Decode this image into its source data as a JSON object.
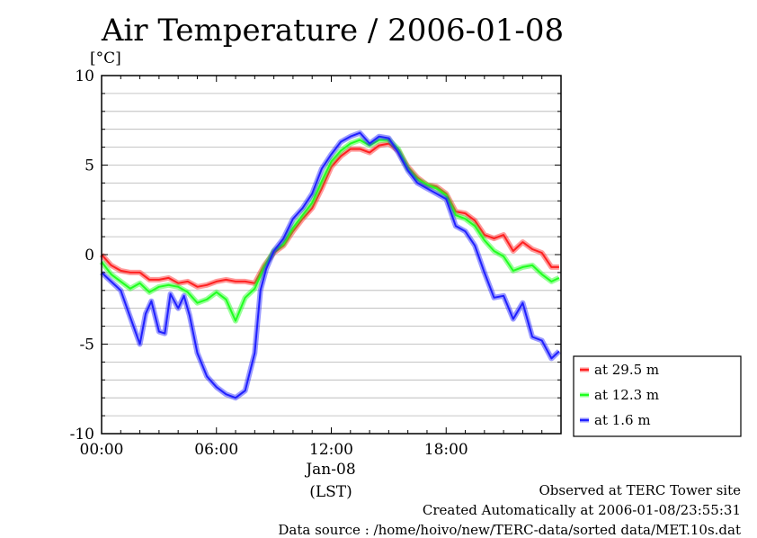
{
  "chart_data": {
    "type": "line",
    "title": "Air Temperature / 2006-01-08",
    "yunit": "[°C]",
    "xlabel": "(LST)",
    "date_label": "Jan-08",
    "x_range_hours": [
      0,
      24
    ],
    "ylim": [
      -10,
      10
    ],
    "y_major_ticks": [
      10,
      5,
      0,
      -5,
      -10
    ],
    "y_minor_step": 1,
    "x_ticks": [
      {
        "hour": 0,
        "label": "00:00"
      },
      {
        "hour": 6,
        "label": "06:00"
      },
      {
        "hour": 12,
        "label": "12:00"
      },
      {
        "hour": 18,
        "label": "18:00"
      }
    ],
    "grid": true,
    "legend_position": "right-bottom",
    "series": [
      {
        "name": "at 29.5 m",
        "color": "#ff2020",
        "x": [
          0,
          0.5,
          1,
          1.5,
          2,
          2.5,
          3,
          3.5,
          4,
          4.5,
          5,
          5.5,
          6,
          6.5,
          7,
          7.5,
          8,
          8.5,
          9,
          9.5,
          10,
          10.5,
          11,
          11.5,
          12,
          12.5,
          13,
          13.5,
          14,
          14.5,
          15,
          15.5,
          16,
          16.5,
          17,
          17.5,
          18,
          18.5,
          19,
          19.5,
          20,
          20.5,
          21,
          21.5,
          22,
          22.5,
          23,
          23.5,
          23.9
        ],
        "values": [
          0,
          -0.6,
          -0.9,
          -1.0,
          -1.0,
          -1.4,
          -1.4,
          -1.3,
          -1.6,
          -1.5,
          -1.8,
          -1.7,
          -1.5,
          -1.4,
          -1.5,
          -1.5,
          -1.6,
          -0.6,
          0.1,
          0.5,
          1.3,
          2.0,
          2.6,
          3.7,
          4.9,
          5.5,
          5.9,
          5.9,
          5.7,
          6.1,
          6.2,
          5.8,
          4.9,
          4.3,
          3.9,
          3.8,
          3.4,
          2.4,
          2.3,
          1.9,
          1.1,
          0.9,
          1.1,
          0.2,
          0.7,
          0.3,
          0.1,
          -0.7,
          -0.7
        ]
      },
      {
        "name": "at 12.3 m",
        "color": "#20ff20",
        "x": [
          0,
          0.5,
          1,
          1.5,
          2,
          2.5,
          3,
          3.5,
          4,
          4.5,
          5,
          5.5,
          6,
          6.5,
          7,
          7.5,
          8,
          8.5,
          9,
          9.5,
          10,
          10.5,
          11,
          11.5,
          12,
          12.5,
          13,
          13.5,
          14,
          14.5,
          15,
          15.5,
          16,
          16.5,
          17,
          17.5,
          18,
          18.5,
          19,
          19.5,
          20,
          20.5,
          21,
          21.5,
          22,
          22.5,
          23,
          23.5,
          23.9
        ],
        "values": [
          -0.4,
          -1.1,
          -1.5,
          -1.9,
          -1.6,
          -2.1,
          -1.8,
          -1.7,
          -1.8,
          -2.1,
          -2.7,
          -2.5,
          -2.1,
          -2.5,
          -3.7,
          -2.4,
          -1.9,
          -0.7,
          0.2,
          0.6,
          1.5,
          2.2,
          2.9,
          4.1,
          5.2,
          5.8,
          6.2,
          6.4,
          6.1,
          6.4,
          6.4,
          5.9,
          4.8,
          4.2,
          3.9,
          3.7,
          3.3,
          2.2,
          2.0,
          1.6,
          0.8,
          0.2,
          -0.1,
          -0.9,
          -0.7,
          -0.6,
          -1.1,
          -1.5,
          -1.3
        ]
      },
      {
        "name": "at 1.6 m",
        "color": "#2020ff",
        "x": [
          0,
          0.5,
          1,
          1.5,
          2,
          2.3,
          2.6,
          3,
          3.3,
          3.6,
          4,
          4.3,
          4.6,
          5,
          5.5,
          6,
          6.5,
          7,
          7.5,
          8,
          8.3,
          8.6,
          9,
          9.5,
          10,
          10.5,
          11,
          11.5,
          12,
          12.5,
          13,
          13.5,
          14,
          14.5,
          15,
          15.5,
          16,
          16.5,
          17,
          17.5,
          18,
          18.5,
          19,
          19.5,
          20,
          20.5,
          21,
          21.5,
          22,
          22.5,
          23,
          23.5,
          23.9
        ],
        "values": [
          -1.0,
          -1.5,
          -2.0,
          -3.5,
          -5.0,
          -3.3,
          -2.6,
          -4.3,
          -4.4,
          -2.2,
          -3.0,
          -2.3,
          -3.4,
          -5.5,
          -6.8,
          -7.4,
          -7.8,
          -8.0,
          -7.6,
          -5.5,
          -2.0,
          -0.8,
          0.2,
          0.9,
          2.0,
          2.6,
          3.4,
          4.8,
          5.6,
          6.3,
          6.6,
          6.8,
          6.2,
          6.6,
          6.5,
          5.7,
          4.7,
          4.0,
          3.7,
          3.4,
          3.1,
          1.6,
          1.3,
          0.5,
          -1.0,
          -2.4,
          -2.3,
          -3.6,
          -2.7,
          -4.6,
          -4.8,
          -5.8,
          -5.4
        ]
      }
    ]
  },
  "footer": {
    "line1": "Observed at TERC Tower site",
    "line2": "Created Automatically at 2006-01-08/23:55:31",
    "line3": "Data source : /home/hoivo/new/TERC-data/sorted  data/MET.10s.dat"
  }
}
